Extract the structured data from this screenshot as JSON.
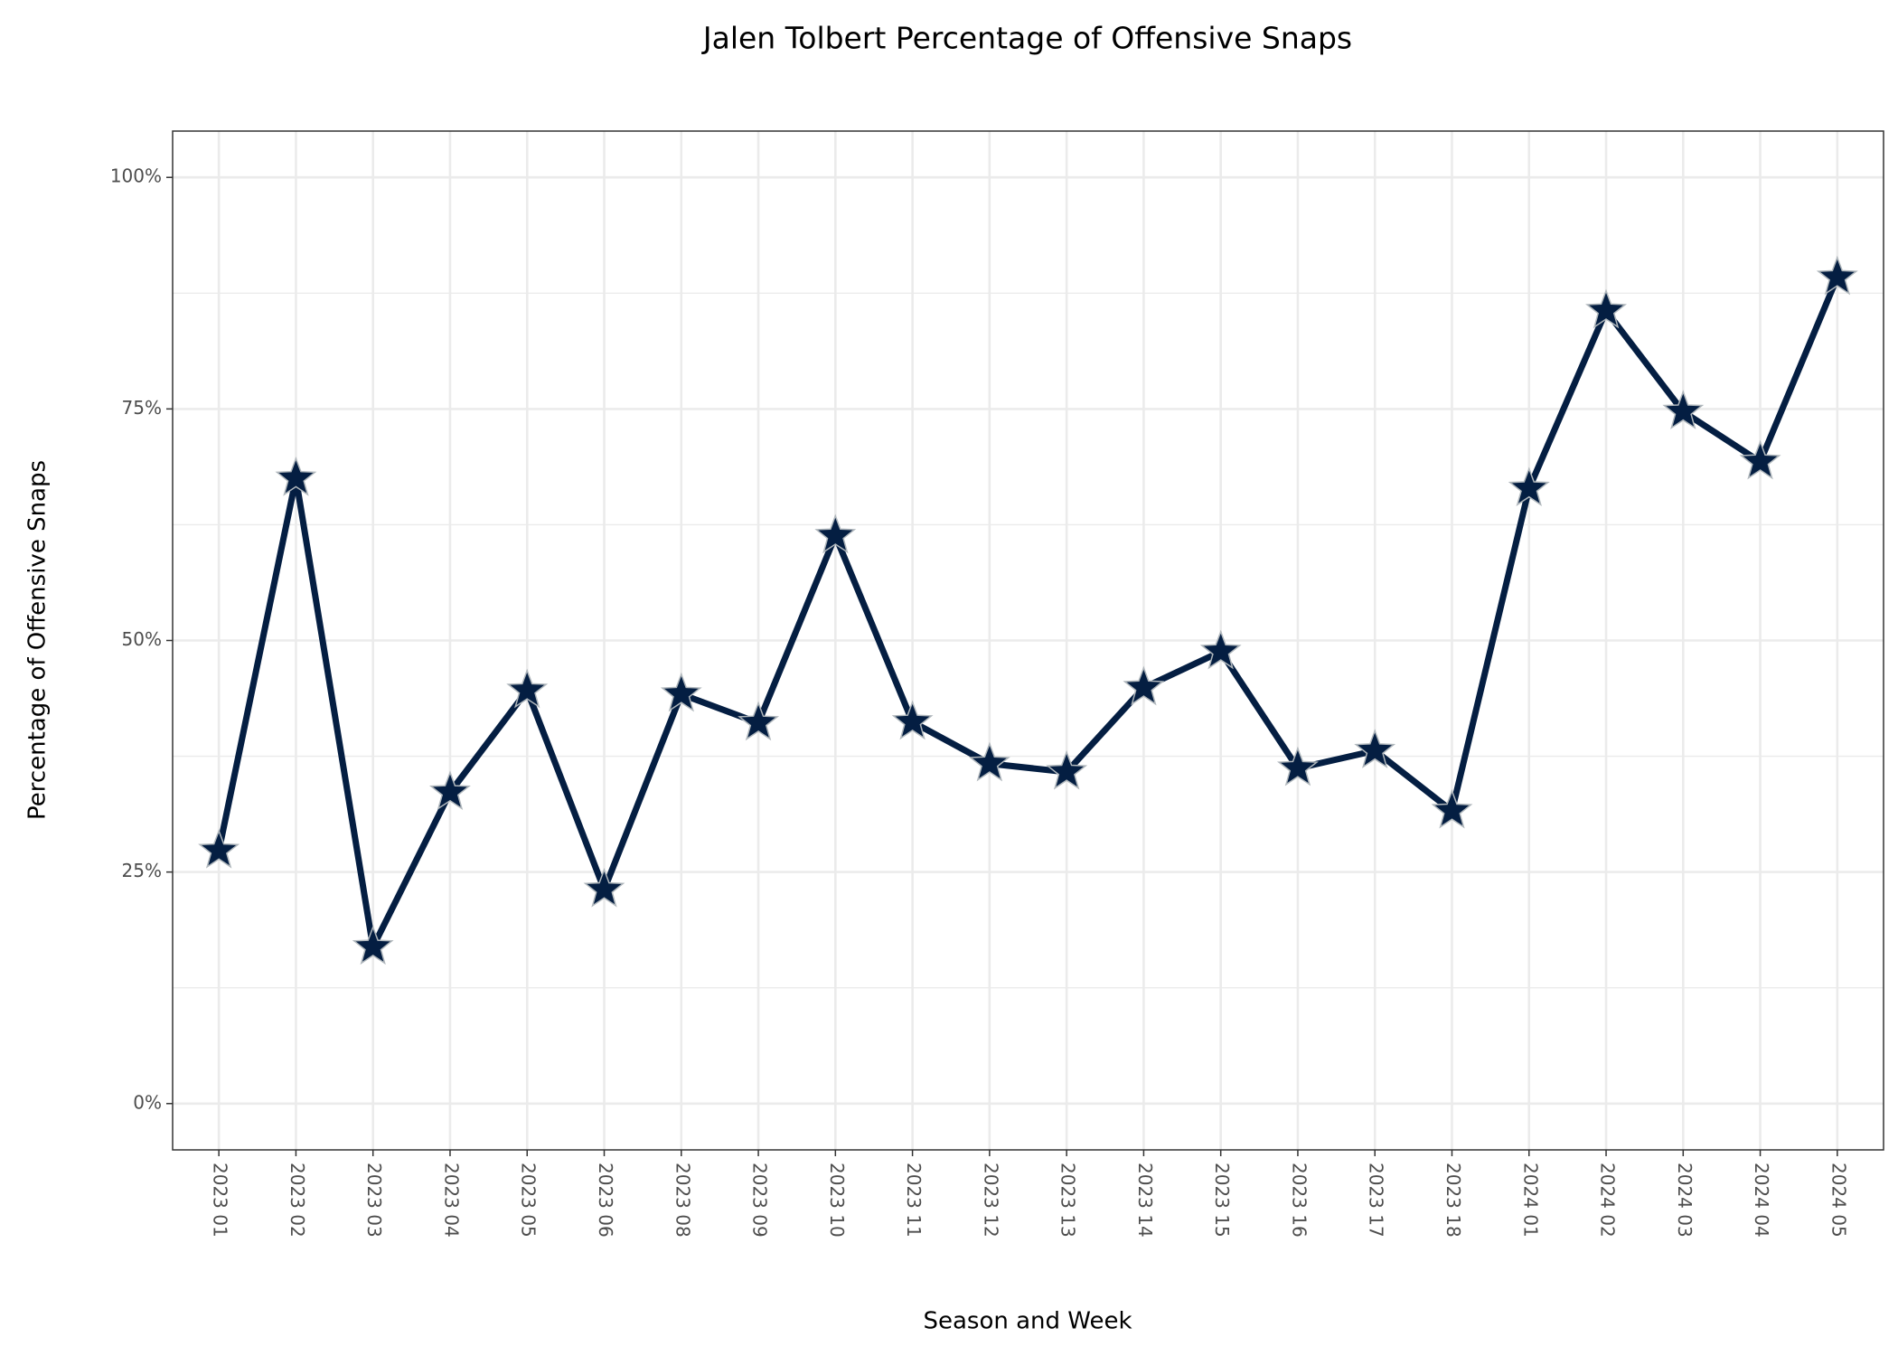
{
  "chart_data": {
    "type": "line",
    "title": "Jalen Tolbert Percentage of Offensive Snaps",
    "x_label": "Season and Week",
    "y_label": "Percentage of Offensive Snaps",
    "categories": [
      "2023 01",
      "2023 02",
      "2023 03",
      "2023 04",
      "2023 05",
      "2023 06",
      "2023 08",
      "2023 09",
      "2023 10",
      "2023 11",
      "2023 12",
      "2023 13",
      "2023 14",
      "2023 15",
      "2023 16",
      "2023 17",
      "2023 18",
      "2024 01",
      "2024 02",
      "2024 03",
      "2024 04",
      "2024 05"
    ],
    "values": [
      27.3,
      67.5,
      16.9,
      33.6,
      44.6,
      23.1,
      44.2,
      41.1,
      61.3,
      41.2,
      36.7,
      35.8,
      44.9,
      48.8,
      36.2,
      38.1,
      31.6,
      66.4,
      85.6,
      74.7,
      69.3,
      89.2
    ],
    "color": "#041E42",
    "ylim": [
      -5,
      105
    ],
    "yticks": [
      {
        "value": 0,
        "label": "0%"
      },
      {
        "value": 25,
        "label": "25%"
      },
      {
        "value": 50,
        "label": "50%"
      },
      {
        "value": 75,
        "label": "75%"
      },
      {
        "value": 100,
        "label": "100%"
      }
    ],
    "y_minor_grid": [
      12.5,
      37.5,
      62.5,
      87.5
    ],
    "grid": true
  }
}
